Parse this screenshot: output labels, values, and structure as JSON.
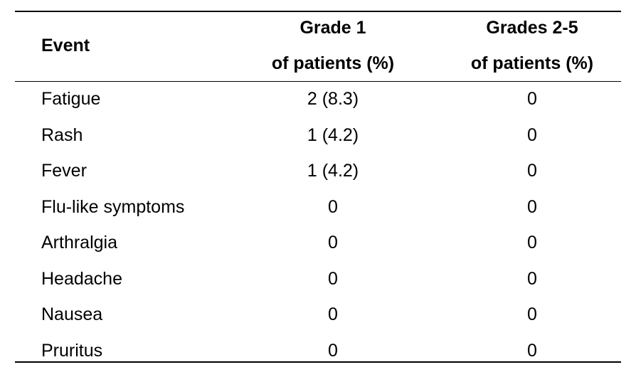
{
  "table": {
    "header": {
      "event": "Event",
      "grade1_line1": "Grade 1",
      "grade1_line2": "of patients (%)",
      "grade25_line1": "Grades 2-5",
      "grade25_line2": "of patients (%)"
    },
    "rows": [
      {
        "event": "Fatigue",
        "grade1": "2 (8.3)",
        "grade25": "0"
      },
      {
        "event": "Rash",
        "grade1": "1 (4.2)",
        "grade25": "0"
      },
      {
        "event": "Fever",
        "grade1": "1 (4.2)",
        "grade25": "0"
      },
      {
        "event": "Flu-like symptoms",
        "grade1": "0",
        "grade25": "0"
      },
      {
        "event": "Arthralgia",
        "grade1": "0",
        "grade25": "0"
      },
      {
        "event": "Headache",
        "grade1": "0",
        "grade25": "0"
      },
      {
        "event": "Nausea",
        "grade1": "0",
        "grade25": "0"
      },
      {
        "event": "Pruritus",
        "grade1": "0",
        "grade25": "0"
      }
    ]
  }
}
